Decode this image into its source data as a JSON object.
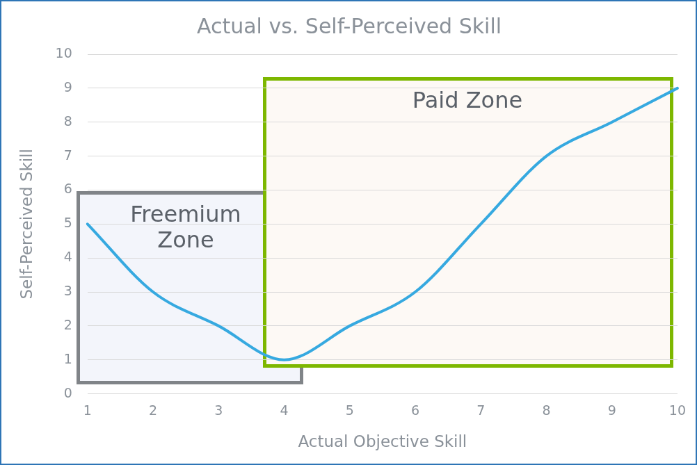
{
  "chart_data": {
    "type": "line",
    "title": "Actual vs. Self-Perceived Skill",
    "xlabel": "Actual Objective Skill",
    "ylabel": "Self-Perceived Skill",
    "categories": [
      "1",
      "2",
      "3",
      "4",
      "5",
      "6",
      "7",
      "8",
      "9",
      "10"
    ],
    "series": [
      {
        "color": "#36a9e0",
        "values": [
          5,
          3,
          2,
          1,
          2,
          3,
          5,
          7,
          8,
          9
        ]
      }
    ],
    "ylim": [
      0,
      10
    ],
    "yticks": [
      0,
      1,
      2,
      3,
      4,
      5,
      6,
      7,
      8,
      9,
      10
    ],
    "grid": "y",
    "legend": false,
    "marker": "none",
    "line_style": "solid",
    "annotations": [
      "Freemium Zone",
      "Paid Zone"
    ]
  }
}
